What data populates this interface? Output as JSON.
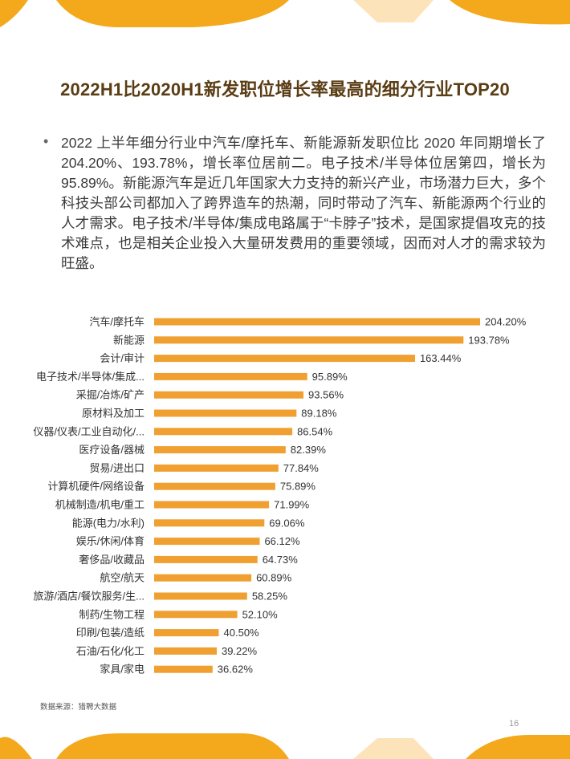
{
  "title": "2022H1比2020H1新发职位增长率最高的细分行业TOP20",
  "bullet": "2022 上半年细分行业中汽车/摩托车、新能源新发职位比 2020 年同期增长了 204.20%、193.78%，增长率位居前二。电子技术/半导体位居第四，增长为 95.89%。新能源汽车是近几年国家大力支持的新兴产业，市场潜力巨大，多个科技头部公司都加入了跨界造车的热潮，同时带动了汽车、新能源两个行业的人才需求。电子技术/半导体/集成电路属于“卡脖子”技术，是国家提倡攻克的技术难点，也是相关企业投入大量研发费用的重要领域，因而对人才的需求较为旺盛。",
  "source": "数据来源：猎聘大数据",
  "page_number": "16",
  "colors": {
    "bar": "#f0a030",
    "title": "#5a3d14",
    "accent": "#f4a81c"
  },
  "chart_data": {
    "type": "bar",
    "orientation": "horizontal",
    "categories": [
      "汽车/摩托车",
      "新能源",
      "会计/审计",
      "电子技术/半导体/集成...",
      "采掘/冶炼/矿产",
      "原材料及加工",
      "仪器/仪表/工业自动化/...",
      "医疗设备/器械",
      "贸易/进出口",
      "计算机硬件/网络设备",
      "机械制造/机电/重工",
      "能源(电力/水利)",
      "娱乐/休闲/体育",
      "奢侈品/收藏品",
      "航空/航天",
      "旅游/酒店/餐饮服务/生...",
      "制药/生物工程",
      "印刷/包装/造纸",
      "石油/石化/化工",
      "家具/家电"
    ],
    "values": [
      204.2,
      193.78,
      163.44,
      95.89,
      93.56,
      89.18,
      86.54,
      82.39,
      77.84,
      75.89,
      71.99,
      69.06,
      66.12,
      64.73,
      60.89,
      58.25,
      52.1,
      40.5,
      39.22,
      36.62
    ],
    "labels": [
      "204.20%",
      "193.78%",
      "163.44%",
      "95.89%",
      "93.56%",
      "89.18%",
      "86.54%",
      "82.39%",
      "77.84%",
      "75.89%",
      "71.99%",
      "69.06%",
      "66.12%",
      "64.73%",
      "60.89%",
      "58.25%",
      "52.10%",
      "40.50%",
      "39.22%",
      "36.62%"
    ],
    "grid": false,
    "legend": "none"
  }
}
